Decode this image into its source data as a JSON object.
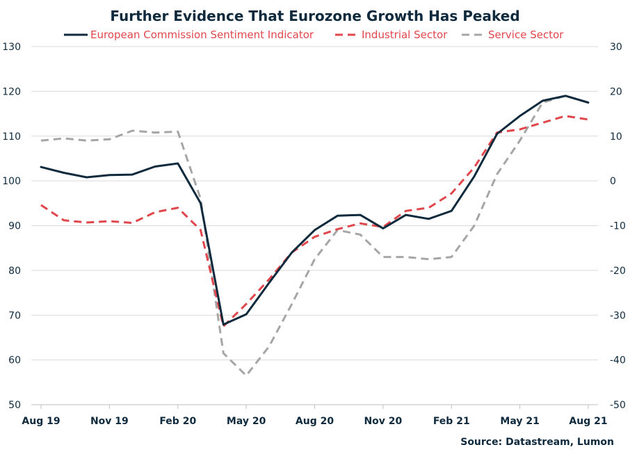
{
  "chart_data": {
    "type": "line",
    "title": "Further Evidence That Eurozone Growth Has Peaked",
    "source": "Source: Datastream, Lumon",
    "x": [
      "Aug 19",
      "Sep 19",
      "Oct 19",
      "Nov 19",
      "Dec 19",
      "Jan 20",
      "Feb 20",
      "Mar 20",
      "Apr 20",
      "May 20",
      "Jun 20",
      "Jul 20",
      "Aug 20",
      "Sep 20",
      "Oct 20",
      "Nov 20",
      "Dec 20",
      "Jan 21",
      "Feb 21",
      "Mar 21",
      "Apr 21",
      "May 21",
      "Jun 21",
      "Jul 21",
      "Aug 21"
    ],
    "x_tick_labels": [
      "Aug 19",
      "Nov 19",
      "Feb 20",
      "May 20",
      "Aug 20",
      "Nov 20",
      "Feb 21",
      "May 21",
      "Aug 21"
    ],
    "left_axis": {
      "ylim": [
        50,
        130
      ],
      "ticks": [
        "50",
        "60",
        "70",
        "80",
        "90",
        "100",
        "110",
        "120",
        "130"
      ]
    },
    "right_axis": {
      "ylim": [
        -50,
        30
      ],
      "ticks": [
        "-50",
        "-40",
        "-30",
        "-20",
        "-10",
        "0",
        "10",
        "20",
        "30"
      ]
    },
    "grid": "horizontal",
    "legend_position": "top",
    "series": [
      {
        "name": "European Commission Sentiment Indicator",
        "axis": "left",
        "color": "#0f2a3d",
        "style": "solid",
        "values": [
          103.1,
          101.8,
          100.8,
          101.3,
          101.4,
          103.2,
          103.9,
          95.0,
          67.9,
          70.2,
          77.2,
          84.0,
          89.0,
          92.2,
          92.4,
          89.4,
          92.4,
          91.5,
          93.3,
          101.0,
          110.5,
          114.5,
          117.9,
          119.0,
          117.5
        ]
      },
      {
        "name": "Industrial Sector",
        "axis": "right",
        "color": "#e0474c",
        "style": "dashed",
        "values": [
          -5.4,
          -8.8,
          -9.3,
          -9.0,
          -9.4,
          -7.0,
          -6.0,
          -11.0,
          -32.5,
          -27.5,
          -22.0,
          -16.0,
          -12.5,
          -10.8,
          -9.5,
          -10.3,
          -6.7,
          -6.0,
          -2.8,
          3.0,
          10.8,
          11.5,
          13.0,
          14.5,
          13.7
        ]
      },
      {
        "name": "Service Sector",
        "axis": "right",
        "color": "#a6a6a6",
        "style": "dashed",
        "values": [
          9.0,
          9.5,
          9.0,
          9.3,
          11.2,
          10.8,
          11.0,
          -4.0,
          -38.5,
          -43.5,
          -37.0,
          -27.5,
          -17.5,
          -11.0,
          -12.0,
          -17.0,
          -17.0,
          -17.5,
          -17.0,
          -10.0,
          1.5,
          9.0,
          17.5,
          19.0,
          17.5
        ]
      }
    ]
  }
}
